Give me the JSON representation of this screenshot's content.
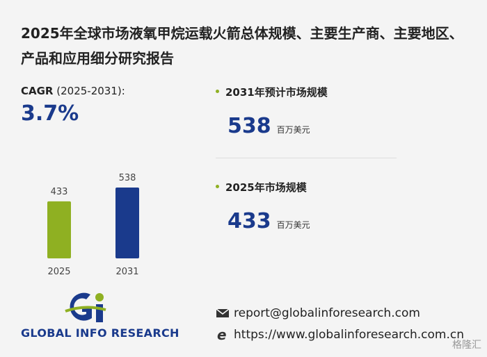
{
  "title": "2025年全球市场液氧甲烷运载火箭总体规模、主要生产商、主要地区、产品和应用细分研究报告",
  "cagr": {
    "label": "CAGR",
    "period": "(2025-2031):",
    "value": "3.7%"
  },
  "chart_data": {
    "type": "bar",
    "categories": [
      "2025",
      "2031"
    ],
    "values": [
      433,
      538
    ],
    "colors": [
      "#8fb022",
      "#1a3a8c"
    ]
  },
  "metrics": [
    {
      "label": "2031年预计市场规模",
      "value": 538,
      "unit": "百万美元"
    },
    {
      "label": "2025年市场规模",
      "value": 433,
      "unit": "百万美元"
    }
  ],
  "logo": "GLOBAL INFO RESEARCH",
  "contact": {
    "email": "report@globalinforesearch.com",
    "website": "https://www.globalinforesearch.com.cn"
  },
  "watermark": "格隆汇"
}
